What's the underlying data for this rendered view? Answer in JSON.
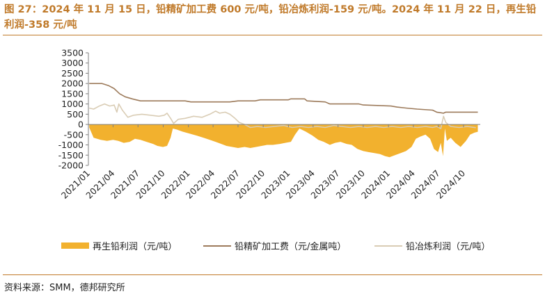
{
  "header": {
    "title": "图 27：2024 年 11 月 15 日，铅精矿加工费 600 元/吨，铅冶炼利润-159 元/吨。2024 年 11 月 22 日，再生铅利润-358 元/吨"
  },
  "footer": {
    "source": "资料来源：SMM，德邦研究所"
  },
  "colors": {
    "title": "#c07a2a",
    "recycled_profit": "#f2b12e",
    "concentrate_fee": "#9c7a5a",
    "smelting_profit": "#d9ccb4"
  },
  "chart_data": {
    "type": "area",
    "title": "",
    "xlabel": "",
    "ylabel": "",
    "ylim": [
      -2000,
      3500
    ],
    "yticks": [
      3500,
      3000,
      2500,
      2000,
      1500,
      1000,
      500,
      0,
      -500,
      -1000,
      -1500,
      -2000
    ],
    "xlim": [
      "2021-01",
      "2024-12"
    ],
    "xticks": [
      "2021/01",
      "2021/04",
      "2021/07",
      "2021/10",
      "2022/01",
      "2022/04",
      "2022/07",
      "2022/10",
      "2023/01",
      "2023/04",
      "2023/07",
      "2023/10",
      "2024/01",
      "2024/04",
      "2024/07",
      "2024/10"
    ],
    "grid": false,
    "legend_position": "bottom",
    "series": [
      {
        "name": "再生铅利润（元/吨）",
        "kind": "area",
        "color": "#f2b12e",
        "points": [
          [
            "2021-01-04",
            -150
          ],
          [
            "2021-01-20",
            -650
          ],
          [
            "2021-02-15",
            -750
          ],
          [
            "2021-03-10",
            -800
          ],
          [
            "2021-04-01",
            -750
          ],
          [
            "2021-04-20",
            -800
          ],
          [
            "2021-05-10",
            -900
          ],
          [
            "2021-06-01",
            -850
          ],
          [
            "2021-06-20",
            -700
          ],
          [
            "2021-07-10",
            -750
          ],
          [
            "2021-08-01",
            -850
          ],
          [
            "2021-08-25",
            -950
          ],
          [
            "2021-09-10",
            -1050
          ],
          [
            "2021-09-30",
            -1100
          ],
          [
            "2021-10-15",
            -1050
          ],
          [
            "2021-10-28",
            -650
          ],
          [
            "2021-11-05",
            -200
          ],
          [
            "2021-11-20",
            -250
          ],
          [
            "2021-12-10",
            -350
          ],
          [
            "2022-01-05",
            -450
          ],
          [
            "2022-02-01",
            -550
          ],
          [
            "2022-02-25",
            -650
          ],
          [
            "2022-03-20",
            -750
          ],
          [
            "2022-04-10",
            -850
          ],
          [
            "2022-05-01",
            -950
          ],
          [
            "2022-05-20",
            -1050
          ],
          [
            "2022-06-10",
            -1100
          ],
          [
            "2022-07-01",
            -1150
          ],
          [
            "2022-07-25",
            -1100
          ],
          [
            "2022-08-15",
            -1150
          ],
          [
            "2022-09-05",
            -1100
          ],
          [
            "2022-09-25",
            -1050
          ],
          [
            "2022-10-15",
            -1000
          ],
          [
            "2022-11-05",
            -1000
          ],
          [
            "2022-12-01",
            -950
          ],
          [
            "2022-12-20",
            -900
          ],
          [
            "2023-01-10",
            -850
          ],
          [
            "2023-01-25",
            -500
          ],
          [
            "2023-02-10",
            -200
          ],
          [
            "2023-03-05",
            -350
          ],
          [
            "2023-03-30",
            -550
          ],
          [
            "2023-04-20",
            -750
          ],
          [
            "2023-05-10",
            -850
          ],
          [
            "2023-06-01",
            -1000
          ],
          [
            "2023-06-20",
            -900
          ],
          [
            "2023-07-10",
            -850
          ],
          [
            "2023-08-01",
            -950
          ],
          [
            "2023-08-20",
            -1000
          ],
          [
            "2023-09-10",
            -1200
          ],
          [
            "2023-10-01",
            -1300
          ],
          [
            "2023-10-20",
            -1350
          ],
          [
            "2023-11-10",
            -1400
          ],
          [
            "2023-12-01",
            -1450
          ],
          [
            "2023-12-20",
            -1550
          ],
          [
            "2024-01-05",
            -1600
          ],
          [
            "2024-01-25",
            -1500
          ],
          [
            "2024-02-15",
            -1400
          ],
          [
            "2024-03-05",
            -1300
          ],
          [
            "2024-03-25",
            -1100
          ],
          [
            "2024-04-10",
            -700
          ],
          [
            "2024-04-25",
            -600
          ],
          [
            "2024-05-15",
            -500
          ],
          [
            "2024-06-01",
            -700
          ],
          [
            "2024-06-15",
            -1200
          ],
          [
            "2024-06-30",
            -1350
          ],
          [
            "2024-07-10",
            -900
          ],
          [
            "2024-07-18",
            -1550
          ],
          [
            "2024-07-25",
            -200
          ],
          [
            "2024-08-01",
            -800
          ],
          [
            "2024-08-15",
            -650
          ],
          [
            "2024-09-01",
            -900
          ],
          [
            "2024-09-20",
            -1100
          ],
          [
            "2024-10-10",
            -800
          ],
          [
            "2024-10-25",
            -500
          ],
          [
            "2024-11-10",
            -400
          ],
          [
            "2024-11-22",
            -358
          ]
        ]
      },
      {
        "name": "铅精矿加工费（元/金属吨）",
        "kind": "line",
        "color": "#9c7a5a",
        "points": [
          [
            "2021-01-04",
            2000
          ],
          [
            "2021-02-20",
            2000
          ],
          [
            "2021-03-15",
            1900
          ],
          [
            "2021-04-05",
            1750
          ],
          [
            "2021-04-25",
            1500
          ],
          [
            "2021-05-15",
            1350
          ],
          [
            "2021-06-10",
            1250
          ],
          [
            "2021-07-10",
            1150
          ],
          [
            "2021-08-01",
            1150
          ],
          [
            "2021-12-20",
            1150
          ],
          [
            "2022-01-10",
            1100
          ],
          [
            "2022-06-01",
            1100
          ],
          [
            "2022-07-01",
            1150
          ],
          [
            "2022-09-01",
            1150
          ],
          [
            "2022-09-20",
            1200
          ],
          [
            "2022-12-31",
            1200
          ],
          [
            "2023-01-10",
            1250
          ],
          [
            "2023-03-01",
            1250
          ],
          [
            "2023-03-10",
            1150
          ],
          [
            "2023-05-15",
            1100
          ],
          [
            "2023-06-01",
            1000
          ],
          [
            "2023-09-15",
            1000
          ],
          [
            "2023-10-01",
            950
          ],
          [
            "2024-01-10",
            900
          ],
          [
            "2024-02-01",
            850
          ],
          [
            "2024-03-05",
            800
          ],
          [
            "2024-04-15",
            750
          ],
          [
            "2024-06-10",
            700
          ],
          [
            "2024-06-25",
            600
          ],
          [
            "2024-07-20",
            550
          ],
          [
            "2024-07-28",
            600
          ],
          [
            "2024-11-22",
            600
          ]
        ]
      },
      {
        "name": "铅冶炼利润（元/吨）",
        "kind": "line",
        "color": "#d9ccb4",
        "points": [
          [
            "2021-01-04",
            800
          ],
          [
            "2021-01-20",
            750
          ],
          [
            "2021-02-10",
            900
          ],
          [
            "2021-03-01",
            1000
          ],
          [
            "2021-03-20",
            900
          ],
          [
            "2021-04-05",
            950
          ],
          [
            "2021-04-15",
            600
          ],
          [
            "2021-04-22",
            1000
          ],
          [
            "2021-05-05",
            700
          ],
          [
            "2021-05-25",
            350
          ],
          [
            "2021-06-15",
            450
          ],
          [
            "2021-07-15",
            500
          ],
          [
            "2021-08-15",
            450
          ],
          [
            "2021-09-15",
            400
          ],
          [
            "2021-10-05",
            450
          ],
          [
            "2021-10-15",
            550
          ],
          [
            "2021-10-28",
            300
          ],
          [
            "2021-11-08",
            50
          ],
          [
            "2021-11-25",
            250
          ],
          [
            "2021-12-20",
            300
          ],
          [
            "2022-01-20",
            400
          ],
          [
            "2022-02-20",
            350
          ],
          [
            "2022-03-20",
            500
          ],
          [
            "2022-04-10",
            650
          ],
          [
            "2022-04-25",
            550
          ],
          [
            "2022-05-15",
            600
          ],
          [
            "2022-06-01",
            500
          ],
          [
            "2022-06-20",
            300
          ],
          [
            "2022-07-05",
            100
          ],
          [
            "2022-07-25",
            0
          ],
          [
            "2022-08-15",
            -150
          ],
          [
            "2022-09-10",
            -100
          ],
          [
            "2022-10-10",
            -150
          ],
          [
            "2022-11-10",
            -100
          ],
          [
            "2022-12-15",
            -50
          ],
          [
            "2023-01-15",
            -150
          ],
          [
            "2023-02-15",
            -100
          ],
          [
            "2023-03-15",
            -150
          ],
          [
            "2023-04-15",
            -100
          ],
          [
            "2023-05-15",
            -150
          ],
          [
            "2023-06-15",
            -50
          ],
          [
            "2023-07-15",
            -100
          ],
          [
            "2023-08-15",
            -150
          ],
          [
            "2023-09-15",
            -100
          ],
          [
            "2023-10-15",
            -150
          ],
          [
            "2023-11-15",
            -100
          ],
          [
            "2023-12-15",
            -150
          ],
          [
            "2024-01-15",
            -100
          ],
          [
            "2024-02-15",
            -150
          ],
          [
            "2024-03-15",
            -100
          ],
          [
            "2024-04-15",
            -150
          ],
          [
            "2024-05-15",
            -100
          ],
          [
            "2024-06-10",
            -150
          ],
          [
            "2024-06-25",
            -100
          ],
          [
            "2024-07-10",
            -200
          ],
          [
            "2024-07-20",
            400
          ],
          [
            "2024-07-28",
            100
          ],
          [
            "2024-08-15",
            -100
          ],
          [
            "2024-09-15",
            -150
          ],
          [
            "2024-10-15",
            -100
          ],
          [
            "2024-11-15",
            -159
          ]
        ]
      }
    ]
  }
}
